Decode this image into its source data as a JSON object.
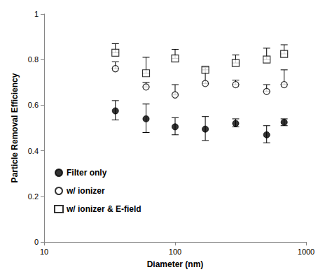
{
  "chart_data": {
    "type": "scatter",
    "x_label": "Diameter (nm)",
    "y_label": "Particle Removal Efficiency",
    "x": [
      35,
      60,
      100,
      170,
      290,
      500,
      680
    ],
    "series": [
      {
        "name": "Filter only",
        "color": "#000000",
        "marker": "filled_circle",
        "values": [
          0.575,
          0.54,
          0.505,
          0.495,
          0.52,
          0.47,
          0.525
        ],
        "errors_up": [
          0.045,
          0.065,
          0.04,
          0.055,
          0.02,
          0.04,
          0.015
        ],
        "errors_down": [
          0.04,
          0.06,
          0.035,
          0.05,
          0.015,
          0.035,
          0.015
        ]
      },
      {
        "name": "w/ ionizer",
        "color": "#000000",
        "marker": "open_circle",
        "values": [
          0.76,
          0.68,
          0.645,
          0.695,
          0.69,
          0.66,
          0.69
        ],
        "errors_up": [
          0.03,
          0.02,
          0.045,
          0.075,
          0.02,
          0.03,
          0.065
        ]
      },
      {
        "name": "w/ ionizer & E-field",
        "color": "#000000",
        "marker": "open_square",
        "values": [
          0.83,
          0.74,
          0.805,
          0.755,
          0.785,
          0.8,
          0.825
        ],
        "errors_up": [
          0.04,
          0.07,
          0.04,
          0.01,
          0.035,
          0.05,
          0.04
        ]
      }
    ],
    "xlim": [
      10,
      1000
    ],
    "xticks": [
      10,
      100,
      1000
    ],
    "ylim": [
      0,
      1
    ],
    "yticks": [
      0,
      0.2,
      0.4,
      0.6,
      0.8,
      1
    ],
    "log": "x",
    "grid": false,
    "legend": "bottom-left"
  }
}
